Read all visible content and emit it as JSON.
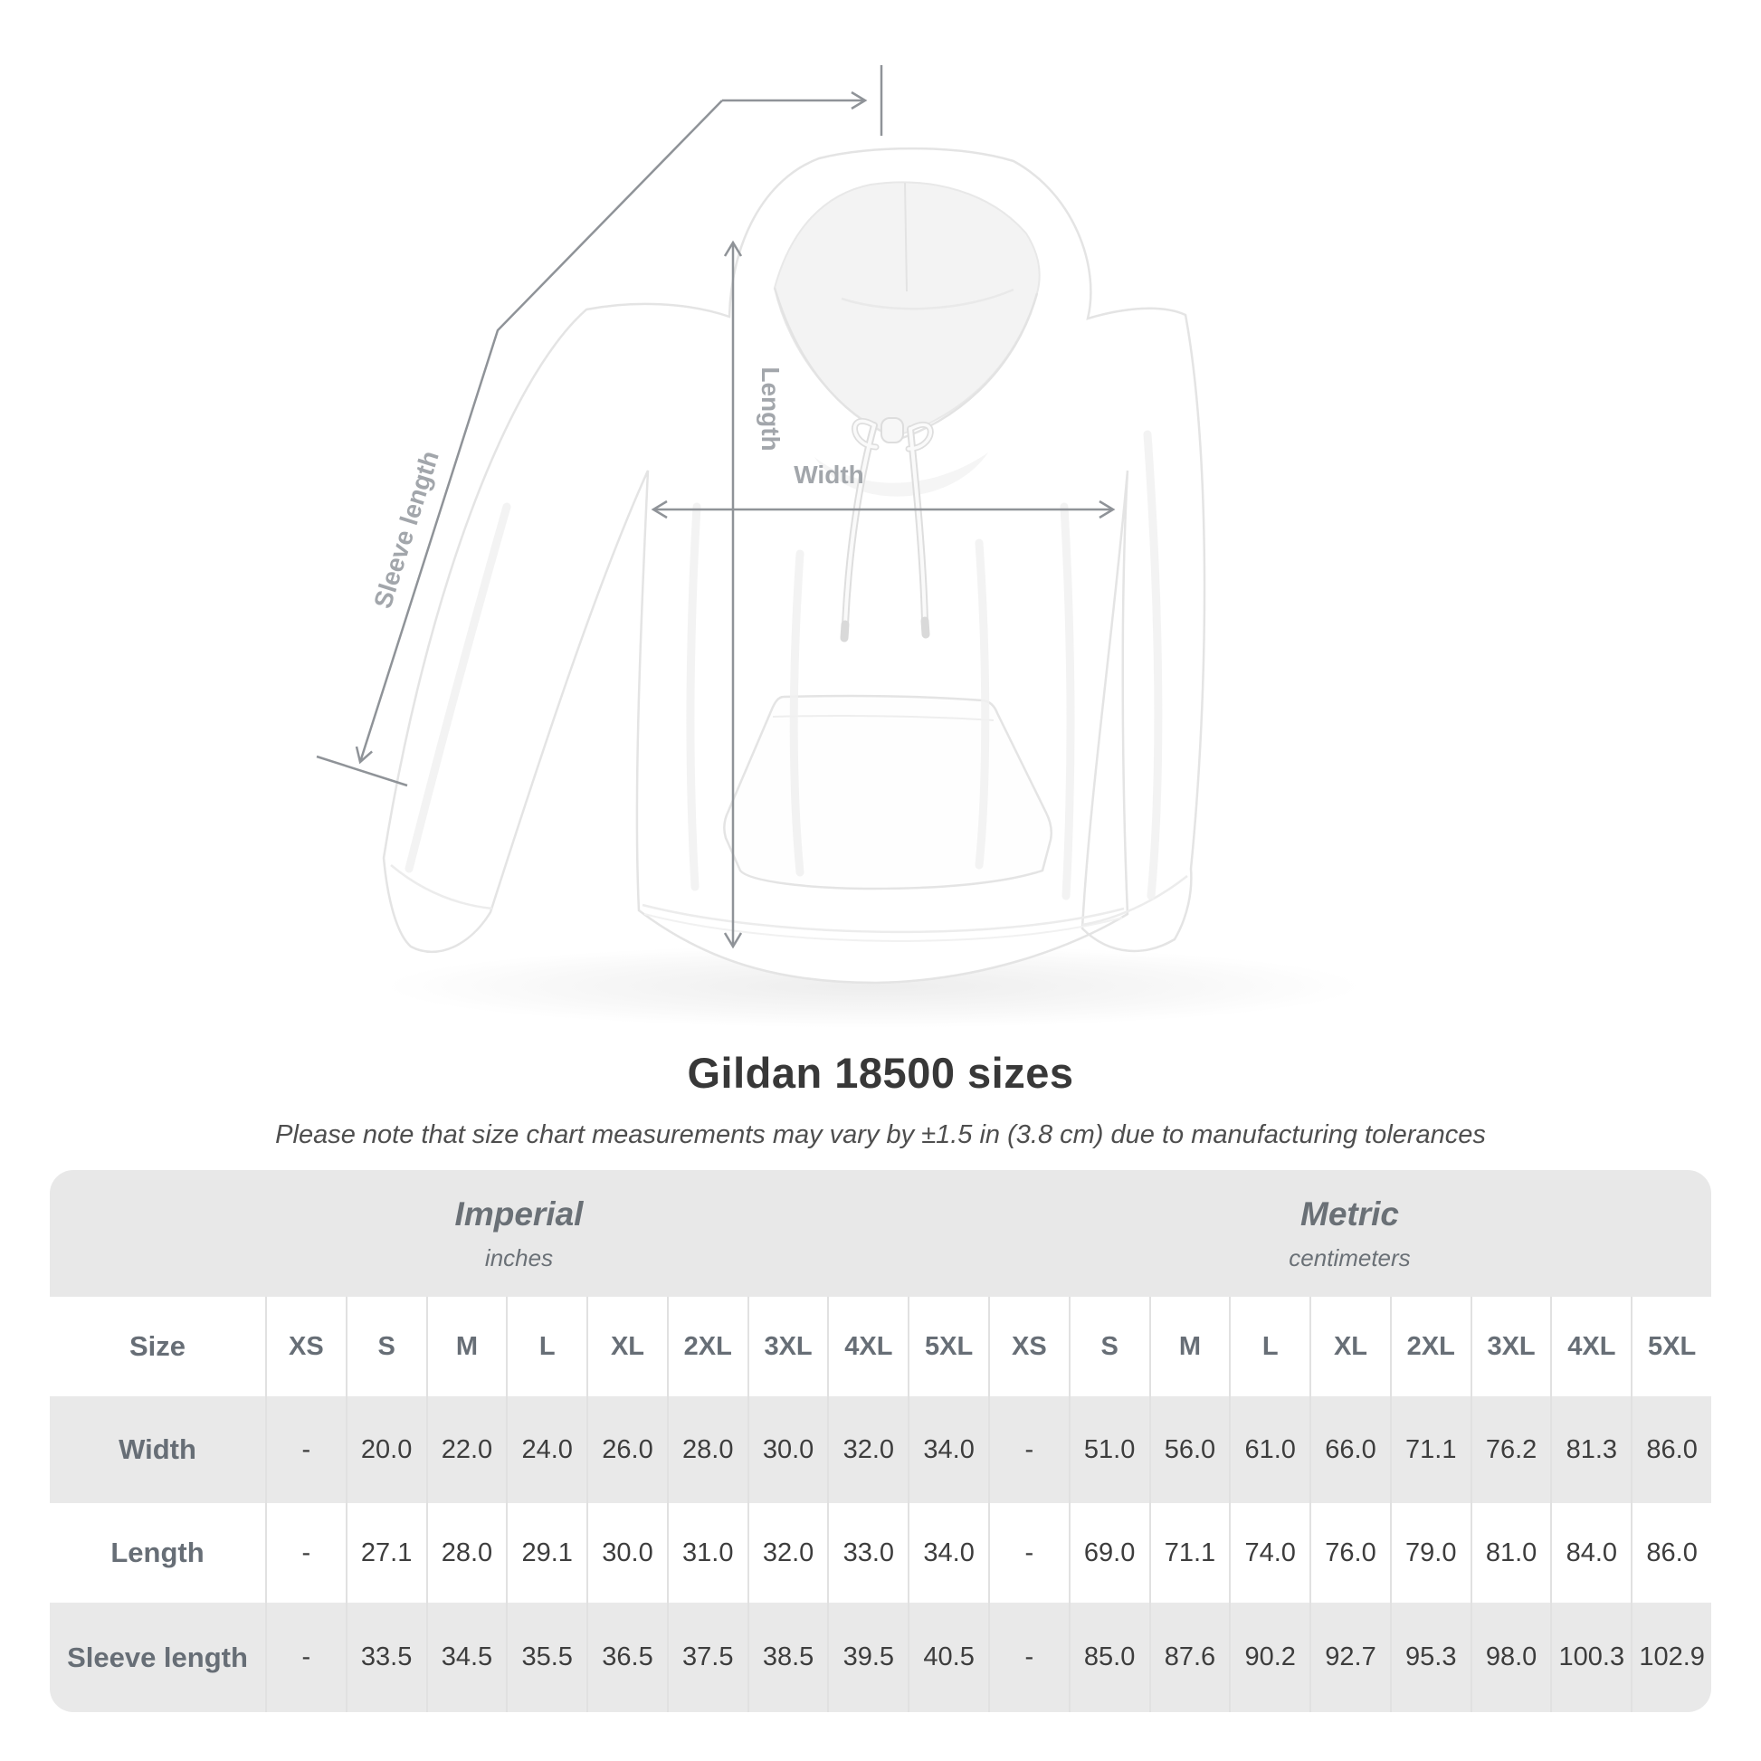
{
  "page": {
    "background": "#ffffff"
  },
  "diagram": {
    "labels": {
      "sleeve_length": "Sleeve length",
      "length": "Length",
      "width": "Width"
    },
    "line_color": "#8f9398",
    "label_color": "#a2a6ab"
  },
  "heading": {
    "title": "Gildan 18500 sizes",
    "subtitle": "Please note that size chart measurements may vary by ±1.5 in (3.8 cm) due to manufacturing tolerances"
  },
  "table": {
    "groups": [
      {
        "label": "Imperial",
        "sublabel": "inches"
      },
      {
        "label": "Metric",
        "sublabel": "centimeters"
      }
    ],
    "size_header": "Size",
    "sizes": [
      "XS",
      "S",
      "M",
      "L",
      "XL",
      "2XL",
      "3XL",
      "4XL",
      "5XL"
    ],
    "rows": [
      {
        "label": "Width",
        "imperial": [
          "-",
          "20.0",
          "22.0",
          "24.0",
          "26.0",
          "28.0",
          "30.0",
          "32.0",
          "34.0"
        ],
        "metric": [
          "-",
          "51.0",
          "56.0",
          "61.0",
          "66.0",
          "71.1",
          "76.2",
          "81.3",
          "86.0"
        ]
      },
      {
        "label": "Length",
        "imperial": [
          "-",
          "27.1",
          "28.0",
          "29.1",
          "30.0",
          "31.0",
          "32.0",
          "33.0",
          "34.0"
        ],
        "metric": [
          "-",
          "69.0",
          "71.1",
          "74.0",
          "76.0",
          "79.0",
          "81.0",
          "84.0",
          "86.0"
        ]
      },
      {
        "label": "Sleeve length",
        "imperial": [
          "-",
          "33.5",
          "34.5",
          "35.5",
          "36.5",
          "37.5",
          "38.5",
          "39.5",
          "40.5"
        ],
        "metric": [
          "-",
          "85.0",
          "87.6",
          "90.2",
          "92.7",
          "95.3",
          "98.0",
          "100.3",
          "102.9"
        ]
      }
    ],
    "colors": {
      "band": "#e8e8e8",
      "alt_row": "#e9e9e9",
      "separator": "#e1e1e1",
      "header_text": "#676e76",
      "value_text": "#3d3d3d"
    }
  }
}
